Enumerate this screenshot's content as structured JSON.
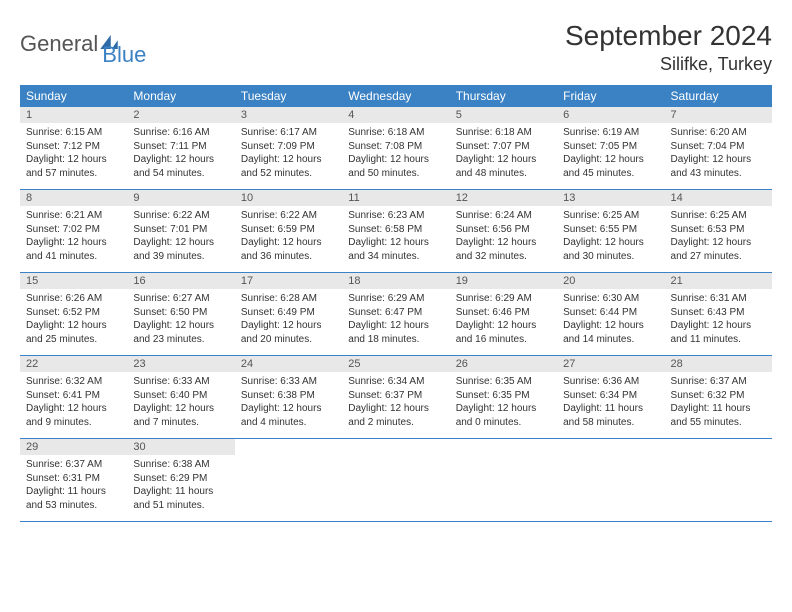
{
  "brand": {
    "text_general": "General",
    "text_blue": "Blue",
    "icon_color": "#2f6aa8"
  },
  "header": {
    "month_title": "September 2024",
    "location": "Silifke, Turkey"
  },
  "colors": {
    "header_bg": "#3b82c4",
    "header_fg": "#ffffff",
    "day_number_bg": "#e8e8e8",
    "border": "#3b82c4"
  },
  "weekdays": [
    "Sunday",
    "Monday",
    "Tuesday",
    "Wednesday",
    "Thursday",
    "Friday",
    "Saturday"
  ],
  "weeks": [
    [
      {
        "day": "1",
        "sunrise": "Sunrise: 6:15 AM",
        "sunset": "Sunset: 7:12 PM",
        "daylight": "Daylight: 12 hours and 57 minutes."
      },
      {
        "day": "2",
        "sunrise": "Sunrise: 6:16 AM",
        "sunset": "Sunset: 7:11 PM",
        "daylight": "Daylight: 12 hours and 54 minutes."
      },
      {
        "day": "3",
        "sunrise": "Sunrise: 6:17 AM",
        "sunset": "Sunset: 7:09 PM",
        "daylight": "Daylight: 12 hours and 52 minutes."
      },
      {
        "day": "4",
        "sunrise": "Sunrise: 6:18 AM",
        "sunset": "Sunset: 7:08 PM",
        "daylight": "Daylight: 12 hours and 50 minutes."
      },
      {
        "day": "5",
        "sunrise": "Sunrise: 6:18 AM",
        "sunset": "Sunset: 7:07 PM",
        "daylight": "Daylight: 12 hours and 48 minutes."
      },
      {
        "day": "6",
        "sunrise": "Sunrise: 6:19 AM",
        "sunset": "Sunset: 7:05 PM",
        "daylight": "Daylight: 12 hours and 45 minutes."
      },
      {
        "day": "7",
        "sunrise": "Sunrise: 6:20 AM",
        "sunset": "Sunset: 7:04 PM",
        "daylight": "Daylight: 12 hours and 43 minutes."
      }
    ],
    [
      {
        "day": "8",
        "sunrise": "Sunrise: 6:21 AM",
        "sunset": "Sunset: 7:02 PM",
        "daylight": "Daylight: 12 hours and 41 minutes."
      },
      {
        "day": "9",
        "sunrise": "Sunrise: 6:22 AM",
        "sunset": "Sunset: 7:01 PM",
        "daylight": "Daylight: 12 hours and 39 minutes."
      },
      {
        "day": "10",
        "sunrise": "Sunrise: 6:22 AM",
        "sunset": "Sunset: 6:59 PM",
        "daylight": "Daylight: 12 hours and 36 minutes."
      },
      {
        "day": "11",
        "sunrise": "Sunrise: 6:23 AM",
        "sunset": "Sunset: 6:58 PM",
        "daylight": "Daylight: 12 hours and 34 minutes."
      },
      {
        "day": "12",
        "sunrise": "Sunrise: 6:24 AM",
        "sunset": "Sunset: 6:56 PM",
        "daylight": "Daylight: 12 hours and 32 minutes."
      },
      {
        "day": "13",
        "sunrise": "Sunrise: 6:25 AM",
        "sunset": "Sunset: 6:55 PM",
        "daylight": "Daylight: 12 hours and 30 minutes."
      },
      {
        "day": "14",
        "sunrise": "Sunrise: 6:25 AM",
        "sunset": "Sunset: 6:53 PM",
        "daylight": "Daylight: 12 hours and 27 minutes."
      }
    ],
    [
      {
        "day": "15",
        "sunrise": "Sunrise: 6:26 AM",
        "sunset": "Sunset: 6:52 PM",
        "daylight": "Daylight: 12 hours and 25 minutes."
      },
      {
        "day": "16",
        "sunrise": "Sunrise: 6:27 AM",
        "sunset": "Sunset: 6:50 PM",
        "daylight": "Daylight: 12 hours and 23 minutes."
      },
      {
        "day": "17",
        "sunrise": "Sunrise: 6:28 AM",
        "sunset": "Sunset: 6:49 PM",
        "daylight": "Daylight: 12 hours and 20 minutes."
      },
      {
        "day": "18",
        "sunrise": "Sunrise: 6:29 AM",
        "sunset": "Sunset: 6:47 PM",
        "daylight": "Daylight: 12 hours and 18 minutes."
      },
      {
        "day": "19",
        "sunrise": "Sunrise: 6:29 AM",
        "sunset": "Sunset: 6:46 PM",
        "daylight": "Daylight: 12 hours and 16 minutes."
      },
      {
        "day": "20",
        "sunrise": "Sunrise: 6:30 AM",
        "sunset": "Sunset: 6:44 PM",
        "daylight": "Daylight: 12 hours and 14 minutes."
      },
      {
        "day": "21",
        "sunrise": "Sunrise: 6:31 AM",
        "sunset": "Sunset: 6:43 PM",
        "daylight": "Daylight: 12 hours and 11 minutes."
      }
    ],
    [
      {
        "day": "22",
        "sunrise": "Sunrise: 6:32 AM",
        "sunset": "Sunset: 6:41 PM",
        "daylight": "Daylight: 12 hours and 9 minutes."
      },
      {
        "day": "23",
        "sunrise": "Sunrise: 6:33 AM",
        "sunset": "Sunset: 6:40 PM",
        "daylight": "Daylight: 12 hours and 7 minutes."
      },
      {
        "day": "24",
        "sunrise": "Sunrise: 6:33 AM",
        "sunset": "Sunset: 6:38 PM",
        "daylight": "Daylight: 12 hours and 4 minutes."
      },
      {
        "day": "25",
        "sunrise": "Sunrise: 6:34 AM",
        "sunset": "Sunset: 6:37 PM",
        "daylight": "Daylight: 12 hours and 2 minutes."
      },
      {
        "day": "26",
        "sunrise": "Sunrise: 6:35 AM",
        "sunset": "Sunset: 6:35 PM",
        "daylight": "Daylight: 12 hours and 0 minutes."
      },
      {
        "day": "27",
        "sunrise": "Sunrise: 6:36 AM",
        "sunset": "Sunset: 6:34 PM",
        "daylight": "Daylight: 11 hours and 58 minutes."
      },
      {
        "day": "28",
        "sunrise": "Sunrise: 6:37 AM",
        "sunset": "Sunset: 6:32 PM",
        "daylight": "Daylight: 11 hours and 55 minutes."
      }
    ],
    [
      {
        "day": "29",
        "sunrise": "Sunrise: 6:37 AM",
        "sunset": "Sunset: 6:31 PM",
        "daylight": "Daylight: 11 hours and 53 minutes."
      },
      {
        "day": "30",
        "sunrise": "Sunrise: 6:38 AM",
        "sunset": "Sunset: 6:29 PM",
        "daylight": "Daylight: 11 hours and 51 minutes."
      },
      null,
      null,
      null,
      null,
      null
    ]
  ]
}
